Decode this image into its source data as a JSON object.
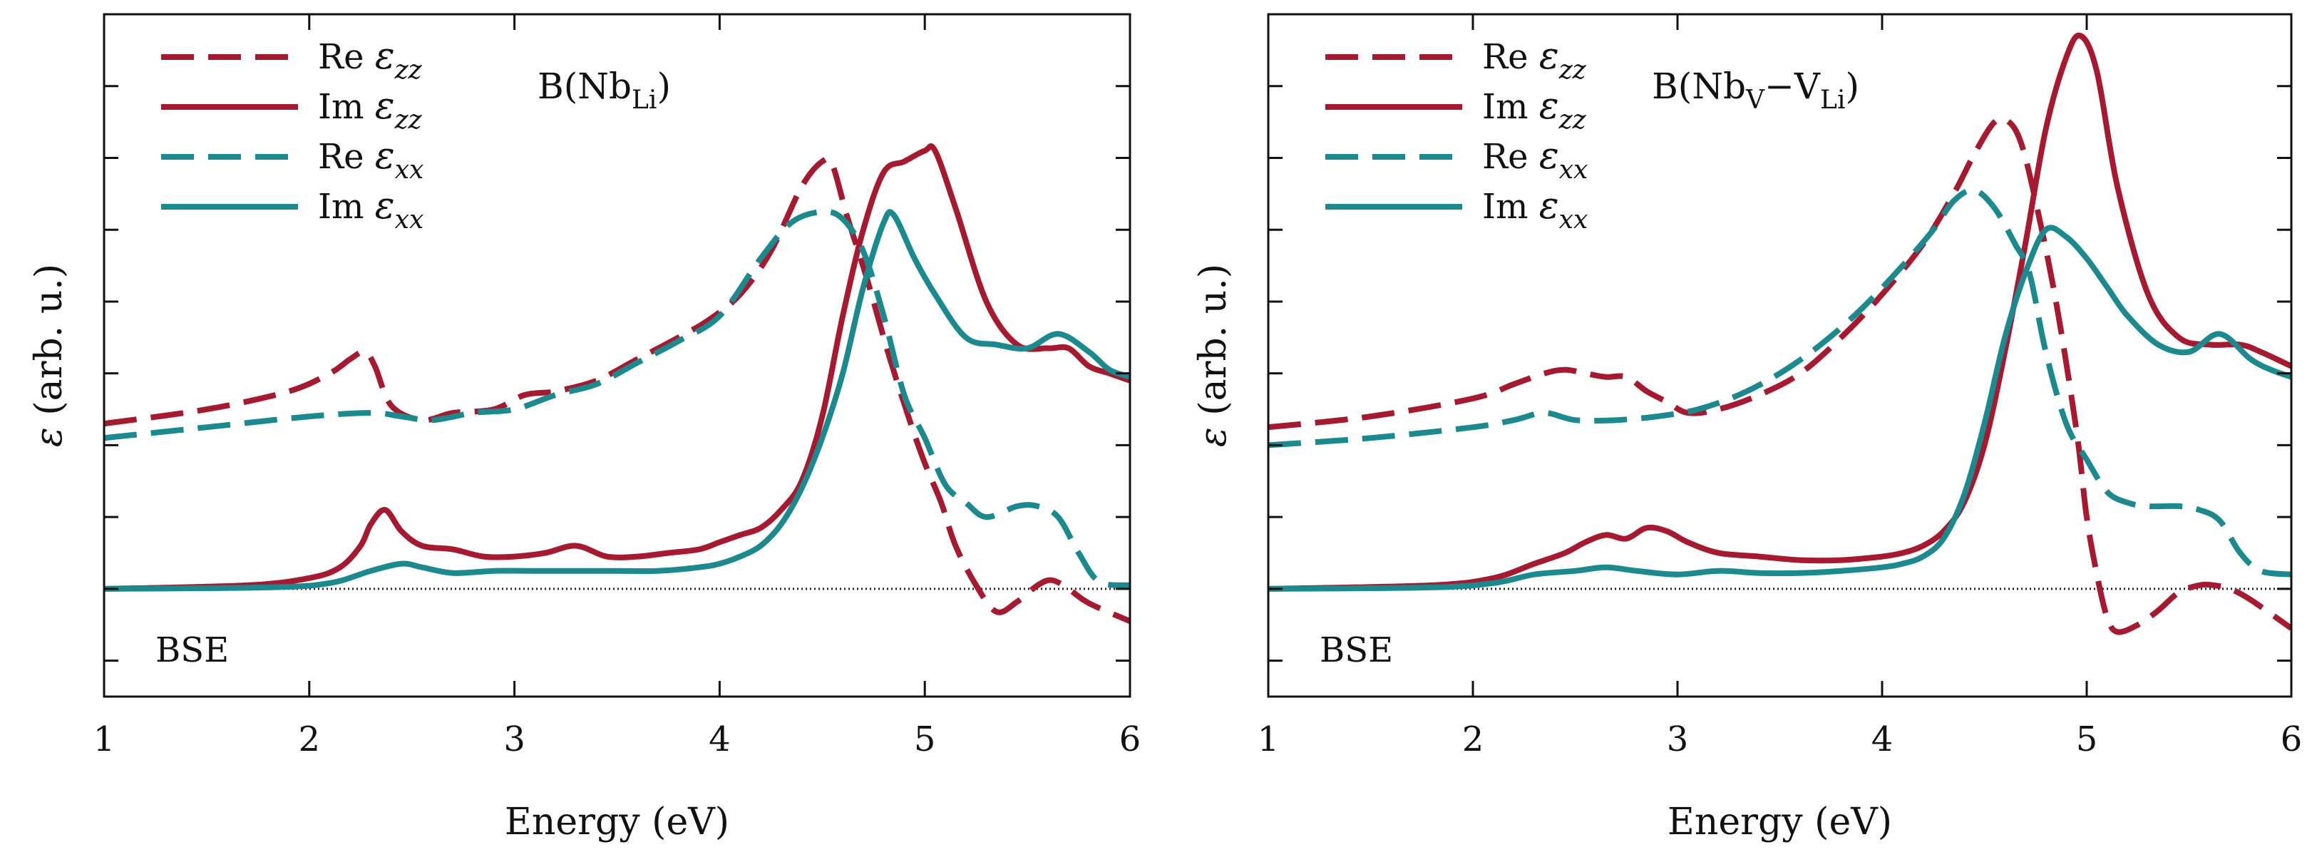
{
  "colors": {
    "zz": "#A6192E",
    "xx": "#1B8A8F",
    "axis": "#111111",
    "zero": "#222222"
  },
  "chart_data": [
    {
      "type": "line",
      "panel_label": "B(Nb",
      "panel_sub": "Li",
      "panel_tail": ")",
      "method": "BSE",
      "xlabel": "Energy (eV)",
      "ylabel_symbol": "ε",
      "ylabel_text": "(arb. u.)",
      "xlim": [
        1,
        6
      ],
      "ylim": [
        -1.5,
        8.0
      ],
      "xticks": [
        1,
        2,
        3,
        4,
        5,
        6
      ],
      "xtick_labels": [
        "1",
        "2",
        "3",
        "4",
        "5",
        "6"
      ],
      "yticks_minor": [
        -1.0,
        0.0,
        1.0,
        2.0,
        3.0,
        4.0,
        5.0,
        6.0,
        7.0,
        8.0
      ],
      "zero_line": 0,
      "series": [
        {
          "name": "Re ε_zz",
          "label_main": "Re ",
          "label_sym": "ε",
          "label_sub": "zz",
          "component": "zz",
          "style": "dashed",
          "x": [
            1.0,
            1.5,
            1.9,
            2.1,
            2.2,
            2.27,
            2.32,
            2.4,
            2.55,
            2.7,
            2.9,
            3.05,
            3.2,
            3.4,
            3.6,
            3.8,
            3.95,
            4.1,
            4.25,
            4.4,
            4.5,
            4.55,
            4.62,
            4.72,
            4.82,
            4.92,
            5.0,
            5.08,
            5.15,
            5.25,
            5.35,
            5.45,
            5.55,
            5.62,
            5.7,
            5.8,
            6.0
          ],
          "y": [
            2.3,
            2.5,
            2.75,
            3.0,
            3.2,
            3.3,
            3.1,
            2.55,
            2.35,
            2.45,
            2.5,
            2.7,
            2.75,
            2.9,
            3.2,
            3.5,
            3.75,
            4.1,
            4.7,
            5.6,
            5.95,
            5.9,
            5.2,
            4.3,
            3.3,
            2.4,
            1.75,
            1.2,
            0.6,
            0.05,
            -0.32,
            -0.18,
            0.05,
            0.12,
            0.0,
            -0.2,
            -0.45
          ]
        },
        {
          "name": "Im ε_zz",
          "label_main": "Im ",
          "label_sym": "ε",
          "label_sub": "zz",
          "component": "zz",
          "style": "solid",
          "x": [
            1.0,
            1.7,
            2.0,
            2.15,
            2.25,
            2.3,
            2.37,
            2.45,
            2.55,
            2.7,
            2.85,
            3.0,
            3.15,
            3.3,
            3.45,
            3.6,
            3.75,
            3.9,
            4.0,
            4.1,
            4.2,
            4.3,
            4.4,
            4.5,
            4.6,
            4.7,
            4.8,
            4.9,
            5.0,
            5.05,
            5.15,
            5.3,
            5.45,
            5.6,
            5.7,
            5.8,
            5.9,
            6.0
          ],
          "y": [
            0.0,
            0.05,
            0.15,
            0.3,
            0.6,
            0.9,
            1.1,
            0.8,
            0.6,
            0.55,
            0.45,
            0.45,
            0.5,
            0.6,
            0.45,
            0.45,
            0.5,
            0.55,
            0.65,
            0.75,
            0.85,
            1.1,
            1.5,
            2.4,
            3.8,
            5.0,
            5.8,
            5.95,
            6.1,
            6.1,
            5.3,
            4.0,
            3.4,
            3.35,
            3.35,
            3.1,
            3.0,
            2.9
          ]
        },
        {
          "name": "Re ε_xx",
          "label_main": "Re ",
          "label_sym": "ε",
          "label_sub": "xx",
          "component": "xx",
          "style": "dashed",
          "x": [
            1.0,
            1.5,
            2.0,
            2.3,
            2.45,
            2.6,
            2.8,
            3.0,
            3.2,
            3.4,
            3.6,
            3.8,
            4.0,
            4.2,
            4.35,
            4.5,
            4.6,
            4.7,
            4.8,
            4.9,
            5.0,
            5.1,
            5.2,
            5.3,
            5.45,
            5.55,
            5.65,
            5.75,
            5.85,
            6.0
          ],
          "y": [
            2.1,
            2.25,
            2.4,
            2.45,
            2.4,
            2.35,
            2.45,
            2.5,
            2.7,
            2.85,
            3.15,
            3.45,
            3.8,
            4.6,
            5.1,
            5.25,
            5.15,
            4.7,
            3.8,
            2.7,
            2.1,
            1.45,
            1.2,
            1.0,
            1.15,
            1.15,
            1.0,
            0.5,
            0.1,
            0.05
          ]
        },
        {
          "name": "Im ε_xx",
          "label_main": "Im ",
          "label_sym": "ε",
          "label_sub": "xx",
          "component": "xx",
          "style": "solid",
          "x": [
            1.0,
            1.8,
            2.1,
            2.3,
            2.45,
            2.55,
            2.7,
            2.9,
            3.1,
            3.3,
            3.5,
            3.7,
            3.9,
            4.0,
            4.1,
            4.2,
            4.3,
            4.4,
            4.5,
            4.6,
            4.7,
            4.8,
            4.85,
            4.95,
            5.05,
            5.2,
            5.35,
            5.5,
            5.65,
            5.8,
            5.9,
            6.0
          ],
          "y": [
            0.0,
            0.02,
            0.08,
            0.25,
            0.35,
            0.3,
            0.22,
            0.25,
            0.25,
            0.25,
            0.25,
            0.25,
            0.3,
            0.35,
            0.45,
            0.6,
            0.9,
            1.4,
            2.1,
            3.0,
            4.2,
            5.1,
            5.2,
            4.6,
            4.1,
            3.5,
            3.4,
            3.35,
            3.55,
            3.3,
            3.05,
            2.95
          ]
        }
      ]
    },
    {
      "type": "line",
      "panel_label": "B(Nb",
      "panel_sub": "V",
      "panel_mid": "−V",
      "panel_sub2": "Li",
      "panel_tail": ")",
      "method": "BSE",
      "xlabel": "Energy (eV)",
      "ylabel_symbol": "ε",
      "ylabel_text": "(arb. u.)",
      "xlim": [
        1,
        6
      ],
      "ylim": [
        -1.5,
        8.0
      ],
      "xticks": [
        1,
        2,
        3,
        4,
        5,
        6
      ],
      "xtick_labels": [
        "1",
        "2",
        "3",
        "4",
        "5",
        "6"
      ],
      "yticks_minor": [
        -1.0,
        0.0,
        1.0,
        2.0,
        3.0,
        4.0,
        5.0,
        6.0,
        7.0,
        8.0
      ],
      "zero_line": 0,
      "series": [
        {
          "name": "Re ε_zz",
          "label_main": "Re ",
          "label_sym": "ε",
          "label_sub": "zz",
          "component": "zz",
          "style": "dashed",
          "x": [
            1.0,
            1.5,
            2.0,
            2.2,
            2.35,
            2.45,
            2.55,
            2.65,
            2.75,
            2.85,
            2.95,
            3.05,
            3.2,
            3.4,
            3.6,
            3.8,
            4.0,
            4.2,
            4.35,
            4.45,
            4.55,
            4.62,
            4.68,
            4.75,
            4.85,
            4.95,
            5.0,
            5.05,
            5.1,
            5.15,
            5.25,
            5.35,
            5.45,
            5.55,
            5.62,
            5.7,
            5.8,
            6.0
          ],
          "y": [
            2.25,
            2.4,
            2.65,
            2.85,
            3.0,
            3.05,
            3.0,
            2.95,
            2.95,
            2.75,
            2.6,
            2.45,
            2.5,
            2.7,
            3.0,
            3.5,
            4.1,
            4.8,
            5.5,
            6.05,
            6.5,
            6.5,
            6.2,
            5.4,
            4.0,
            2.2,
            1.0,
            0.2,
            -0.4,
            -0.6,
            -0.5,
            -0.3,
            -0.05,
            0.05,
            0.05,
            0.0,
            -0.15,
            -0.55
          ]
        },
        {
          "name": "Im ε_zz",
          "label_main": "Im ",
          "label_sym": "ε",
          "label_sub": "zz",
          "component": "zz",
          "style": "solid",
          "x": [
            1.0,
            1.8,
            2.1,
            2.3,
            2.45,
            2.55,
            2.65,
            2.75,
            2.85,
            2.95,
            3.05,
            3.2,
            3.4,
            3.6,
            3.8,
            4.0,
            4.1,
            4.2,
            4.3,
            4.4,
            4.5,
            4.6,
            4.7,
            4.8,
            4.9,
            4.97,
            5.05,
            5.15,
            5.3,
            5.45,
            5.6,
            5.75,
            5.85,
            6.0
          ],
          "y": [
            0.0,
            0.05,
            0.15,
            0.35,
            0.5,
            0.65,
            0.75,
            0.7,
            0.85,
            0.8,
            0.65,
            0.5,
            0.45,
            0.4,
            0.4,
            0.45,
            0.5,
            0.6,
            0.8,
            1.2,
            2.0,
            3.3,
            4.8,
            6.4,
            7.4,
            7.7,
            7.2,
            5.6,
            4.1,
            3.5,
            3.4,
            3.4,
            3.3,
            3.1
          ]
        },
        {
          "name": "Re ε_xx",
          "label_main": "Re ",
          "label_sym": "ε",
          "label_sub": "xx",
          "component": "xx",
          "style": "dashed",
          "x": [
            1.0,
            1.5,
            2.0,
            2.2,
            2.35,
            2.5,
            2.7,
            2.9,
            3.1,
            3.3,
            3.5,
            3.7,
            3.9,
            4.1,
            4.25,
            4.35,
            4.45,
            4.55,
            4.65,
            4.72,
            4.8,
            4.9,
            5.0,
            5.1,
            5.2,
            5.3,
            5.45,
            5.55,
            5.65,
            5.75,
            5.85,
            6.0
          ],
          "y": [
            2.0,
            2.1,
            2.25,
            2.35,
            2.45,
            2.35,
            2.35,
            2.4,
            2.5,
            2.7,
            3.0,
            3.4,
            3.9,
            4.5,
            5.0,
            5.4,
            5.55,
            5.3,
            4.8,
            4.4,
            3.3,
            2.3,
            1.8,
            1.35,
            1.2,
            1.15,
            1.15,
            1.1,
            0.95,
            0.5,
            0.25,
            0.2
          ]
        },
        {
          "name": "Im ε_xx",
          "label_main": "Im ",
          "label_sym": "ε",
          "label_sub": "xx",
          "component": "xx",
          "style": "solid",
          "x": [
            1.0,
            1.8,
            2.1,
            2.3,
            2.5,
            2.65,
            2.8,
            3.0,
            3.2,
            3.4,
            3.6,
            3.8,
            4.0,
            4.1,
            4.2,
            4.3,
            4.4,
            4.5,
            4.6,
            4.7,
            4.8,
            4.9,
            5.0,
            5.1,
            5.2,
            5.35,
            5.5,
            5.65,
            5.8,
            5.9,
            6.0
          ],
          "y": [
            0.0,
            0.02,
            0.08,
            0.2,
            0.25,
            0.3,
            0.25,
            0.2,
            0.25,
            0.22,
            0.22,
            0.25,
            0.3,
            0.35,
            0.45,
            0.7,
            1.3,
            2.3,
            3.5,
            4.4,
            5.0,
            4.9,
            4.6,
            4.2,
            3.8,
            3.4,
            3.3,
            3.55,
            3.2,
            3.05,
            2.95
          ]
        }
      ]
    }
  ]
}
